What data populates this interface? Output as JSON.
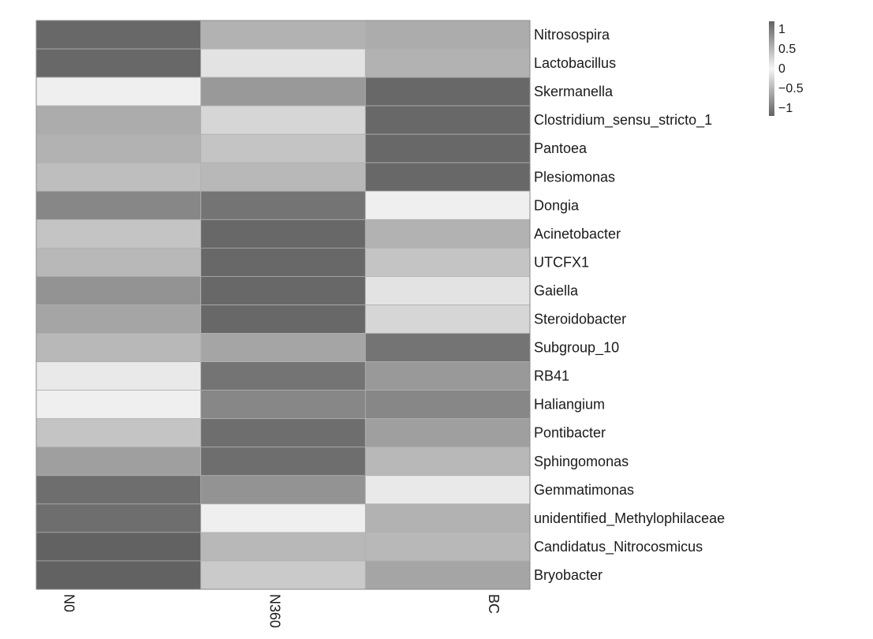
{
  "chart_data": {
    "type": "heatmap",
    "title": "",
    "xlabel": "",
    "ylabel": "",
    "columns": [
      "N0",
      "N360",
      "BC"
    ],
    "rows": [
      "Nitrosospira",
      "Lactobacillus",
      "Skermanella",
      "Clostridium_sensu_stricto_1",
      "Pantoea",
      "Plesiomonas",
      "Dongia",
      "Acinetobacter",
      "UTCFX1",
      "Gaiella",
      "Steroidobacter",
      "Subgroup_10",
      "RB41",
      "Haliangium",
      "Pontibacter",
      "Sphingomonas",
      "Gemmatimonas",
      "unidentified_Methylophilaceae",
      "Candidatus_Nitrocosmicus",
      "Bryobacter"
    ],
    "values": [
      [
        -1.15,
        0.55,
        0.6
      ],
      [
        -1.15,
        0.15,
        -0.55
      ],
      [
        0.05,
        0.75,
        -1.15
      ],
      [
        0.6,
        0.25,
        -1.15
      ],
      [
        0.55,
        0.4,
        -1.15
      ],
      [
        0.45,
        0.5,
        -1.15
      ],
      [
        -0.9,
        -1.05,
        -0.05
      ],
      [
        0.4,
        -1.15,
        0.55
      ],
      [
        0.5,
        -1.15,
        0.4
      ],
      [
        0.8,
        -1.15,
        0.15
      ],
      [
        0.65,
        -1.15,
        0.25
      ],
      [
        0.5,
        0.65,
        -1.05
      ],
      [
        0.1,
        -1.05,
        0.75
      ],
      [
        0.05,
        -0.9,
        -0.9
      ],
      [
        0.4,
        -1.1,
        0.7
      ],
      [
        0.7,
        -1.1,
        0.5
      ],
      [
        -1.1,
        0.8,
        0.1
      ],
      [
        -1.1,
        0.05,
        -0.55
      ],
      [
        -1.2,
        0.5,
        0.5
      ],
      [
        -1.2,
        0.35,
        0.65
      ]
    ],
    "color_scale": {
      "min": -1.2,
      "max": 1.2,
      "low_color": "#626262",
      "high_color": "#f5f5f5"
    },
    "legend": {
      "position": "top-right",
      "ticks": [
        "1",
        "0.5",
        "0",
        "−0.5",
        "−1"
      ],
      "tick_values": [
        1,
        0.5,
        0,
        -0.5,
        -1
      ]
    },
    "grid": true
  }
}
